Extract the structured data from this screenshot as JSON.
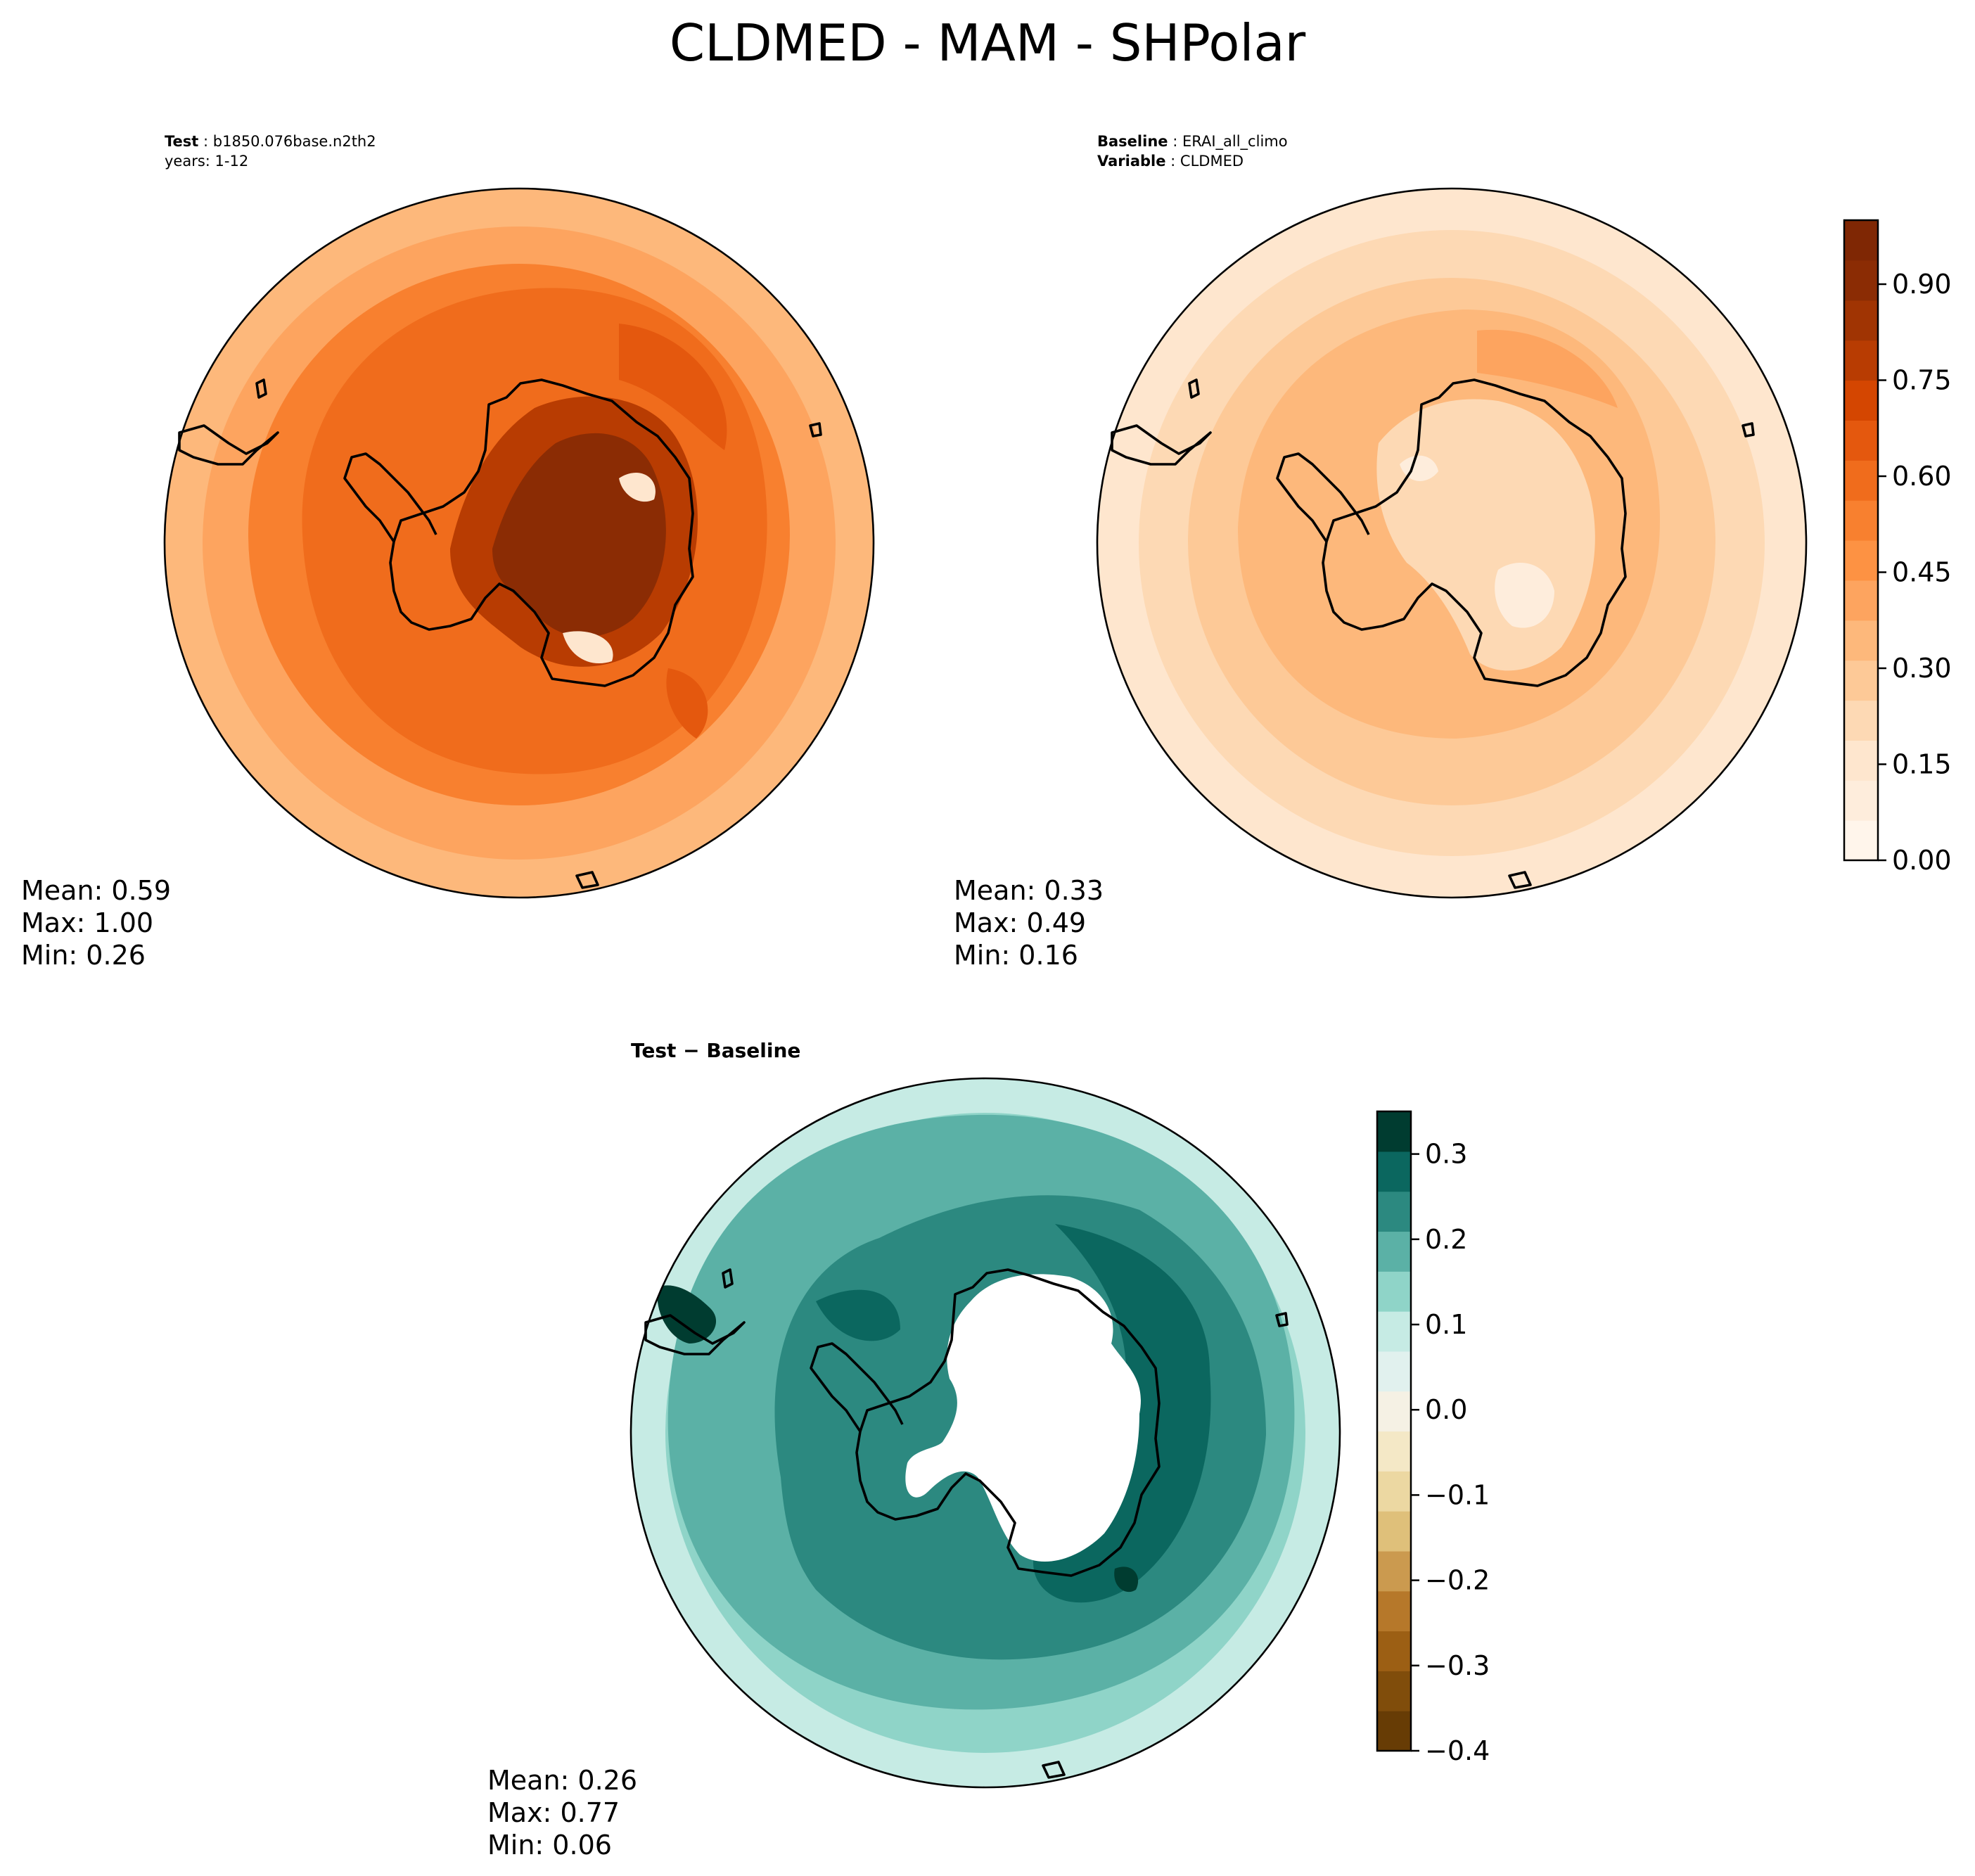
{
  "figure": {
    "title": "CLDMED - MAM - SHPolar"
  },
  "panels": {
    "test": {
      "label_key": "Test",
      "label_value": "b1850.076base.n2th2",
      "line2": "years: 1-12",
      "stats": {
        "mean": "Mean:  0.59",
        "max": "Max:  1.00",
        "min": "Min:  0.26"
      }
    },
    "baseline": {
      "label_key": "Baseline",
      "label_value": "ERAI_all_climo",
      "var_key": "Variable",
      "var_value": "CLDMED",
      "stats": {
        "mean": "Mean:  0.33",
        "max": "Max:  0.49",
        "min": "Min:  0.16"
      }
    },
    "diff": {
      "label": "Test − Baseline",
      "stats": {
        "mean": "Mean:  0.26",
        "max": "Max:  0.77",
        "min": "Min:  0.06"
      }
    }
  },
  "colorbars": {
    "main": {
      "ticks": [
        "0.00",
        "0.15",
        "0.30",
        "0.45",
        "0.60",
        "0.75",
        "0.90"
      ],
      "tick_values": [
        0.0,
        0.15,
        0.3,
        0.45,
        0.6,
        0.75,
        0.9
      ],
      "range": [
        0.0,
        1.0
      ],
      "colors": [
        "#fff5eb",
        "#feeddc",
        "#fee6ce",
        "#fdd9b4",
        "#fdc997",
        "#fdb87b",
        "#fda45f",
        "#fd9243",
        "#f8802f",
        "#f06c1c",
        "#e4580e",
        "#d44601",
        "#b83c02",
        "#a03403",
        "#8b2c04",
        "#7f2704"
      ]
    },
    "diff": {
      "ticks": [
        "0.3",
        "0.2",
        "0.1",
        "0.0",
        "−0.1",
        "−0.2",
        "−0.3",
        "−0.4"
      ],
      "tick_values": [
        0.3,
        0.2,
        0.1,
        0.0,
        -0.1,
        -0.2,
        -0.3,
        -0.4
      ],
      "range": [
        -0.4,
        0.35
      ],
      "colors": [
        "#673c05",
        "#804d0b",
        "#9c5f14",
        "#b6782a",
        "#cb9a4f",
        "#dfc07a",
        "#ecd8a2",
        "#f4e8c6",
        "#f5f1e4",
        "#e1f1ee",
        "#c6ebe4",
        "#8fd4c8",
        "#5bb1a6",
        "#2c8980",
        "#0b675f",
        "#003c30"
      ]
    }
  },
  "maps": {
    "test_colors": {
      "outer": "#fdb87b",
      "ring1": "#fda45f",
      "ring2": "#f8802f",
      "ring3": "#f06c1c",
      "ring4": "#e4580e",
      "core": "#8b2c04",
      "coreEdge": "#b83c02",
      "light": "#fee6ce"
    },
    "base_colors": {
      "outer": "#fee6ce",
      "ring1": "#fdd9b4",
      "ring2": "#fdc997",
      "ring3": "#fdb87b",
      "ring4": "#fda45f",
      "interior": "#fdd9b4",
      "light": "#feeddc"
    },
    "diff_colors": {
      "outer": "#c6ebe4",
      "ring1": "#8fd4c8",
      "ring2": "#5bb1a6",
      "ring3": "#2c8980",
      "ring4": "#0b675f",
      "dark": "#003c30",
      "blank": "#ffffff"
    }
  }
}
